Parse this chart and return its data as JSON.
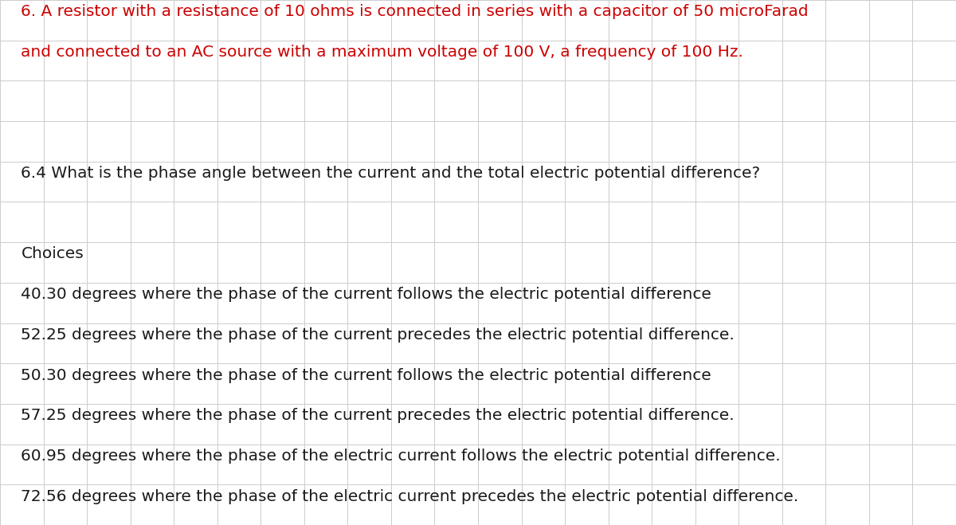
{
  "background_color": "#ffffff",
  "grid_color": "#cccccc",
  "header_text_line1": "6. A resistor with a resistance of 10 ohms is connected in series with a capacitor of 50 microFarad",
  "header_text_line2": "and connected to an AC source with a maximum voltage of 100 V, a frequency of 100 Hz.",
  "header_color": "#cc0000",
  "question_text": "6.4 What is the phase angle between the current and the total electric potential difference?",
  "question_color": "#1a1a1a",
  "choices_label": "Choices",
  "choices": [
    "40.30 degrees where the phase of the current follows the electric potential difference",
    "52.25 degrees where the phase of the current precedes the electric potential difference.",
    "50.30 degrees where the phase of the current follows the electric potential difference",
    "57.25 degrees where the phase of the current precedes the electric potential difference.",
    "60.95 degrees where the phase of the electric current follows the electric potential difference.",
    "72.56 degrees where the phase of the electric current precedes the electric potential difference."
  ],
  "choices_color": "#1a1a1a",
  "font_size_header": 14.5,
  "font_size_question": 14.5,
  "font_size_choices": 14.5,
  "num_cols": 22,
  "num_rows": 13,
  "figsize": [
    12.0,
    6.59
  ]
}
